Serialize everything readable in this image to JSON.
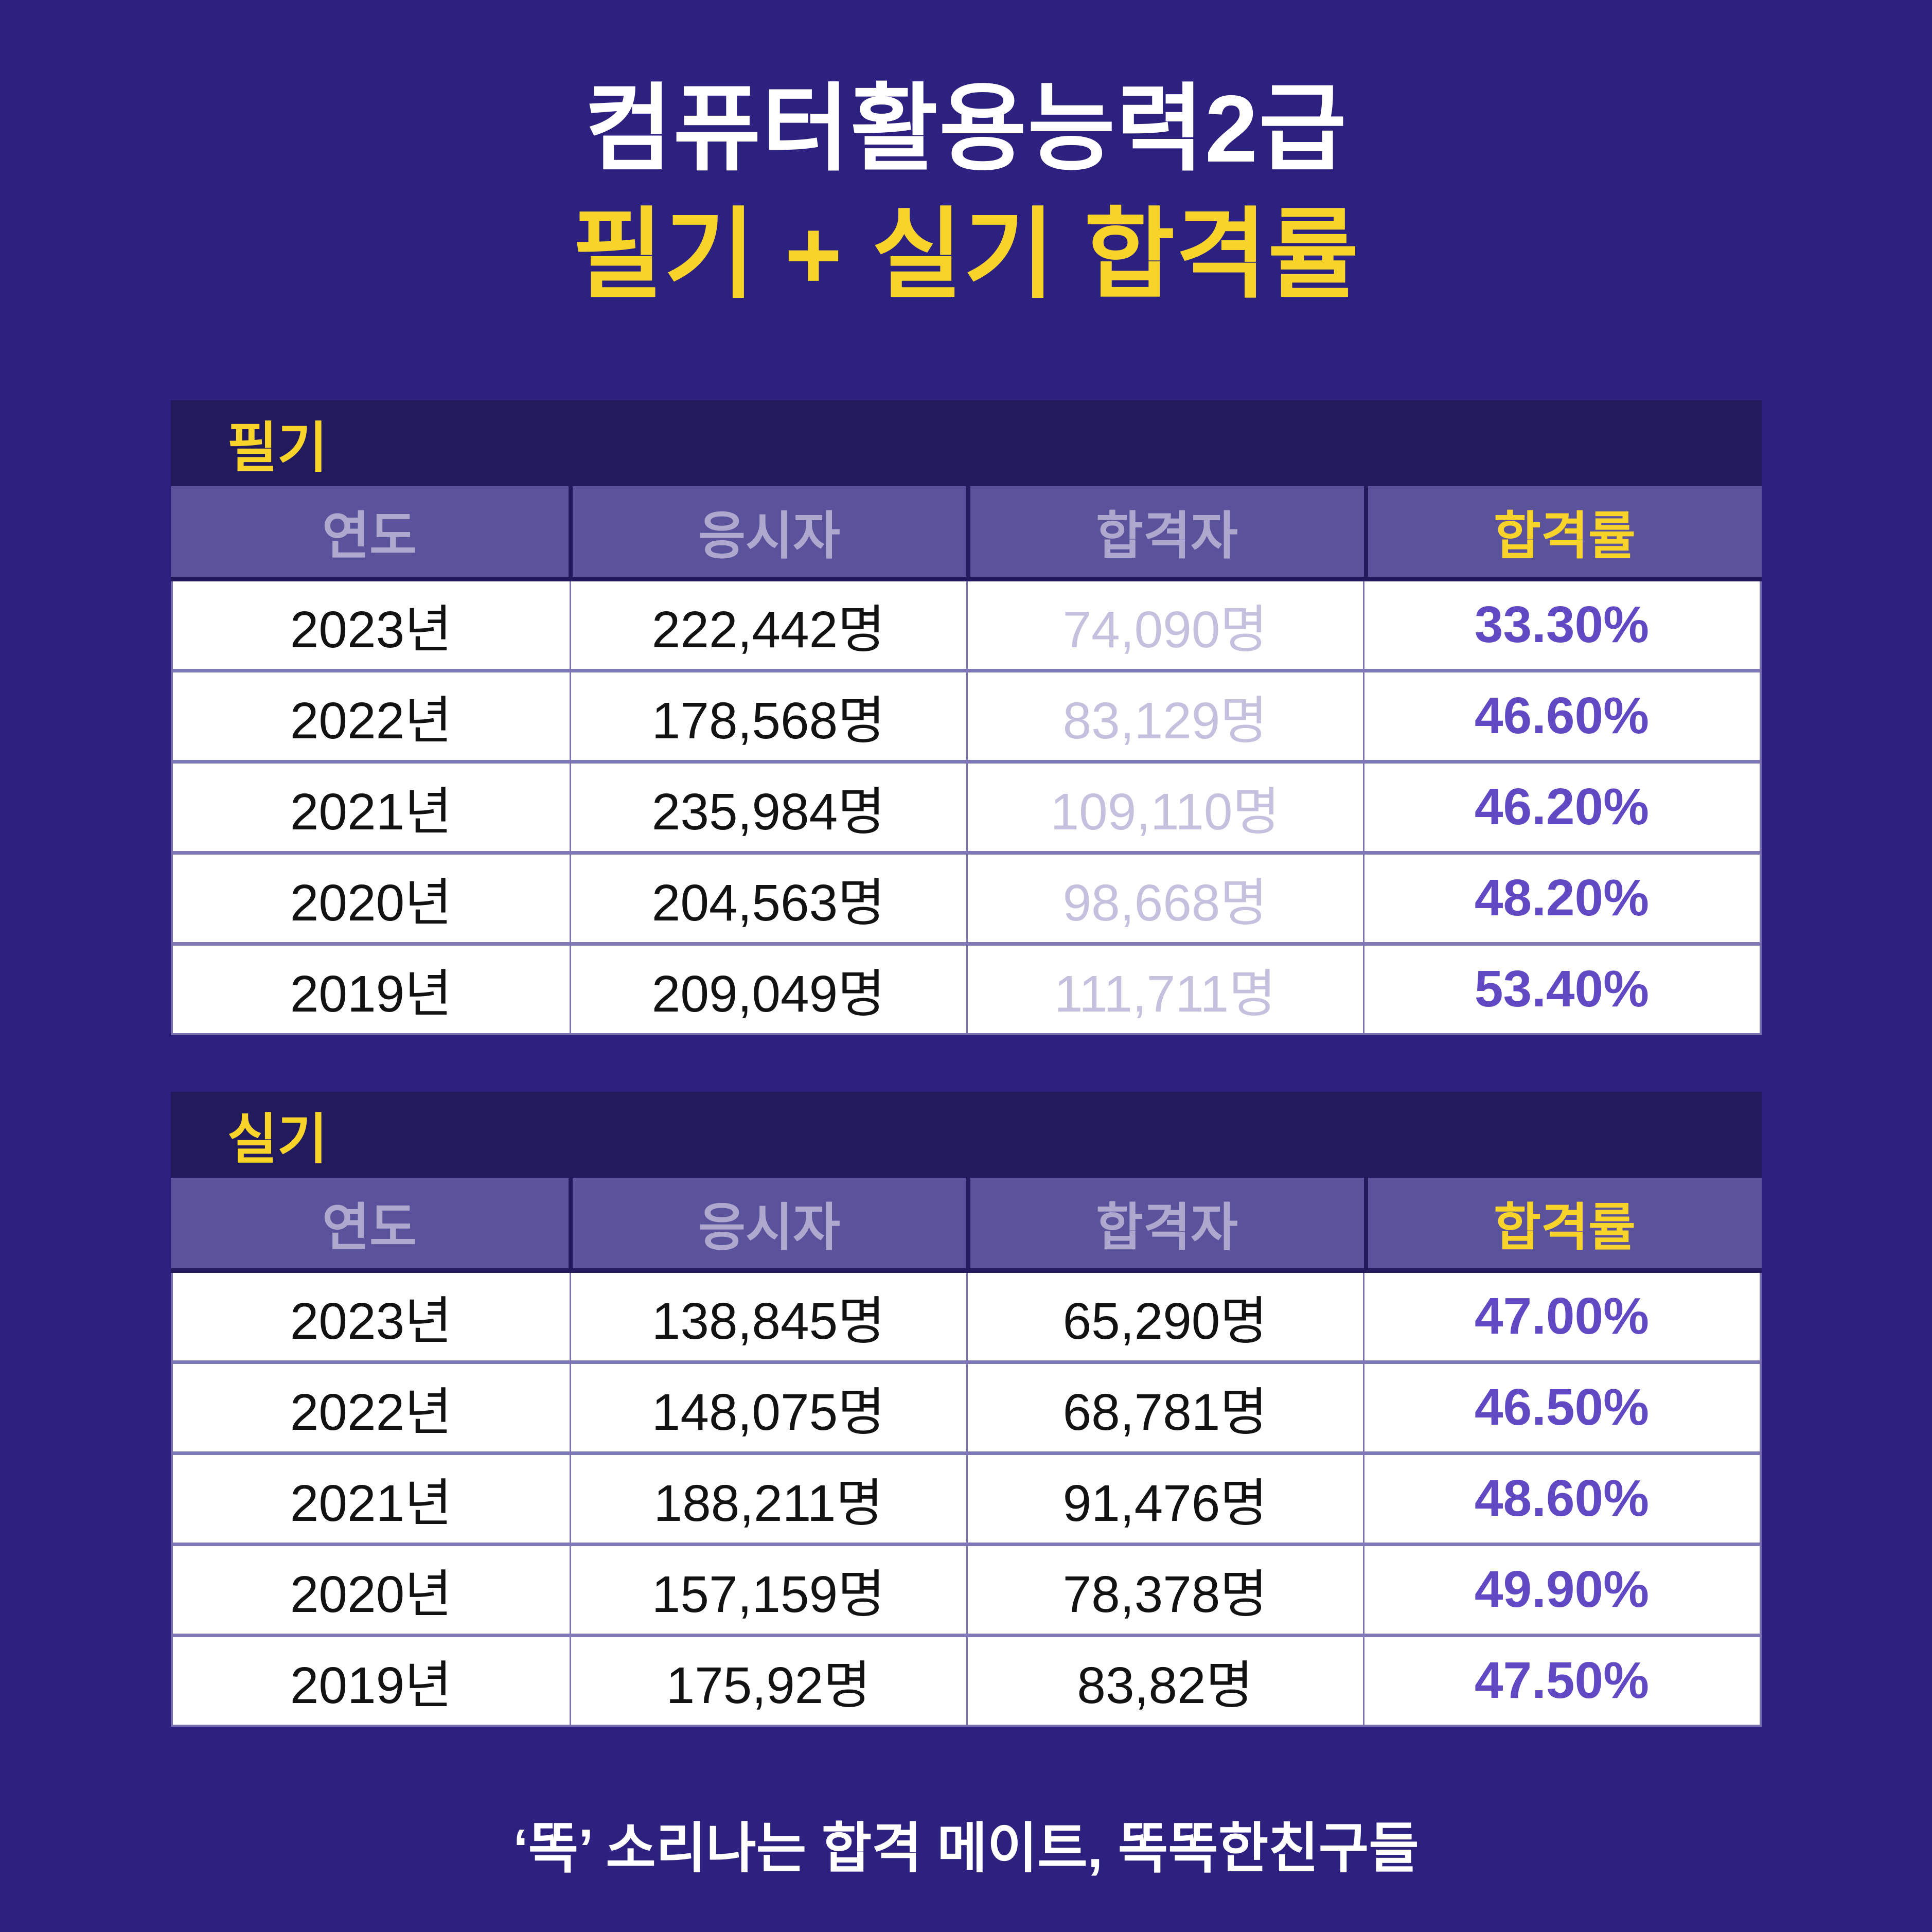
{
  "title": {
    "line1": "컴퓨터활용능력2급",
    "line2": "필기 + 실기 합격률"
  },
  "chart_data": [
    {
      "type": "table",
      "label": "필기",
      "columns": [
        "연도",
        "응시자",
        "합격자",
        "합격률"
      ],
      "rows": [
        [
          "2023년",
          "222,442명",
          "74,090명",
          "33.30%"
        ],
        [
          "2022년",
          "178,568명",
          "83,129명",
          "46.60%"
        ],
        [
          "2021년",
          "235,984명",
          "109,110명",
          "46.20%"
        ],
        [
          "2020년",
          "204,563명",
          "98,668명",
          "48.20%"
        ],
        [
          "2019년",
          "209,049명",
          "111,711명",
          "53.40%"
        ]
      ]
    },
    {
      "type": "table",
      "label": "실기",
      "columns": [
        "연도",
        "응시자",
        "합격자",
        "합격률"
      ],
      "rows": [
        [
          "2023년",
          "138,845명",
          "65,290명",
          "47.00%"
        ],
        [
          "2022년",
          "148,075명",
          "68,781명",
          "46.50%"
        ],
        [
          "2021년",
          "188,211명",
          "91,476명",
          "48.60%"
        ],
        [
          "2020년",
          "157,159명",
          "78,378명",
          "49.90%"
        ],
        [
          "2019년",
          "175,92명",
          "83,82명",
          "47.50%"
        ]
      ]
    }
  ],
  "footer": {
    "tagline": "‘똑’ 소리나는 합격 메이트, 똑똑한친구들"
  },
  "colors": {
    "background": "#2D2180",
    "panel_bar": "#211A5C",
    "table_header_bg": "#5A529B",
    "accent_yellow": "#F8D32A",
    "rate_purple": "#6149C3",
    "muted_lavender": "#C6C0DF",
    "header_text_lavender": "#AEA7CE"
  }
}
